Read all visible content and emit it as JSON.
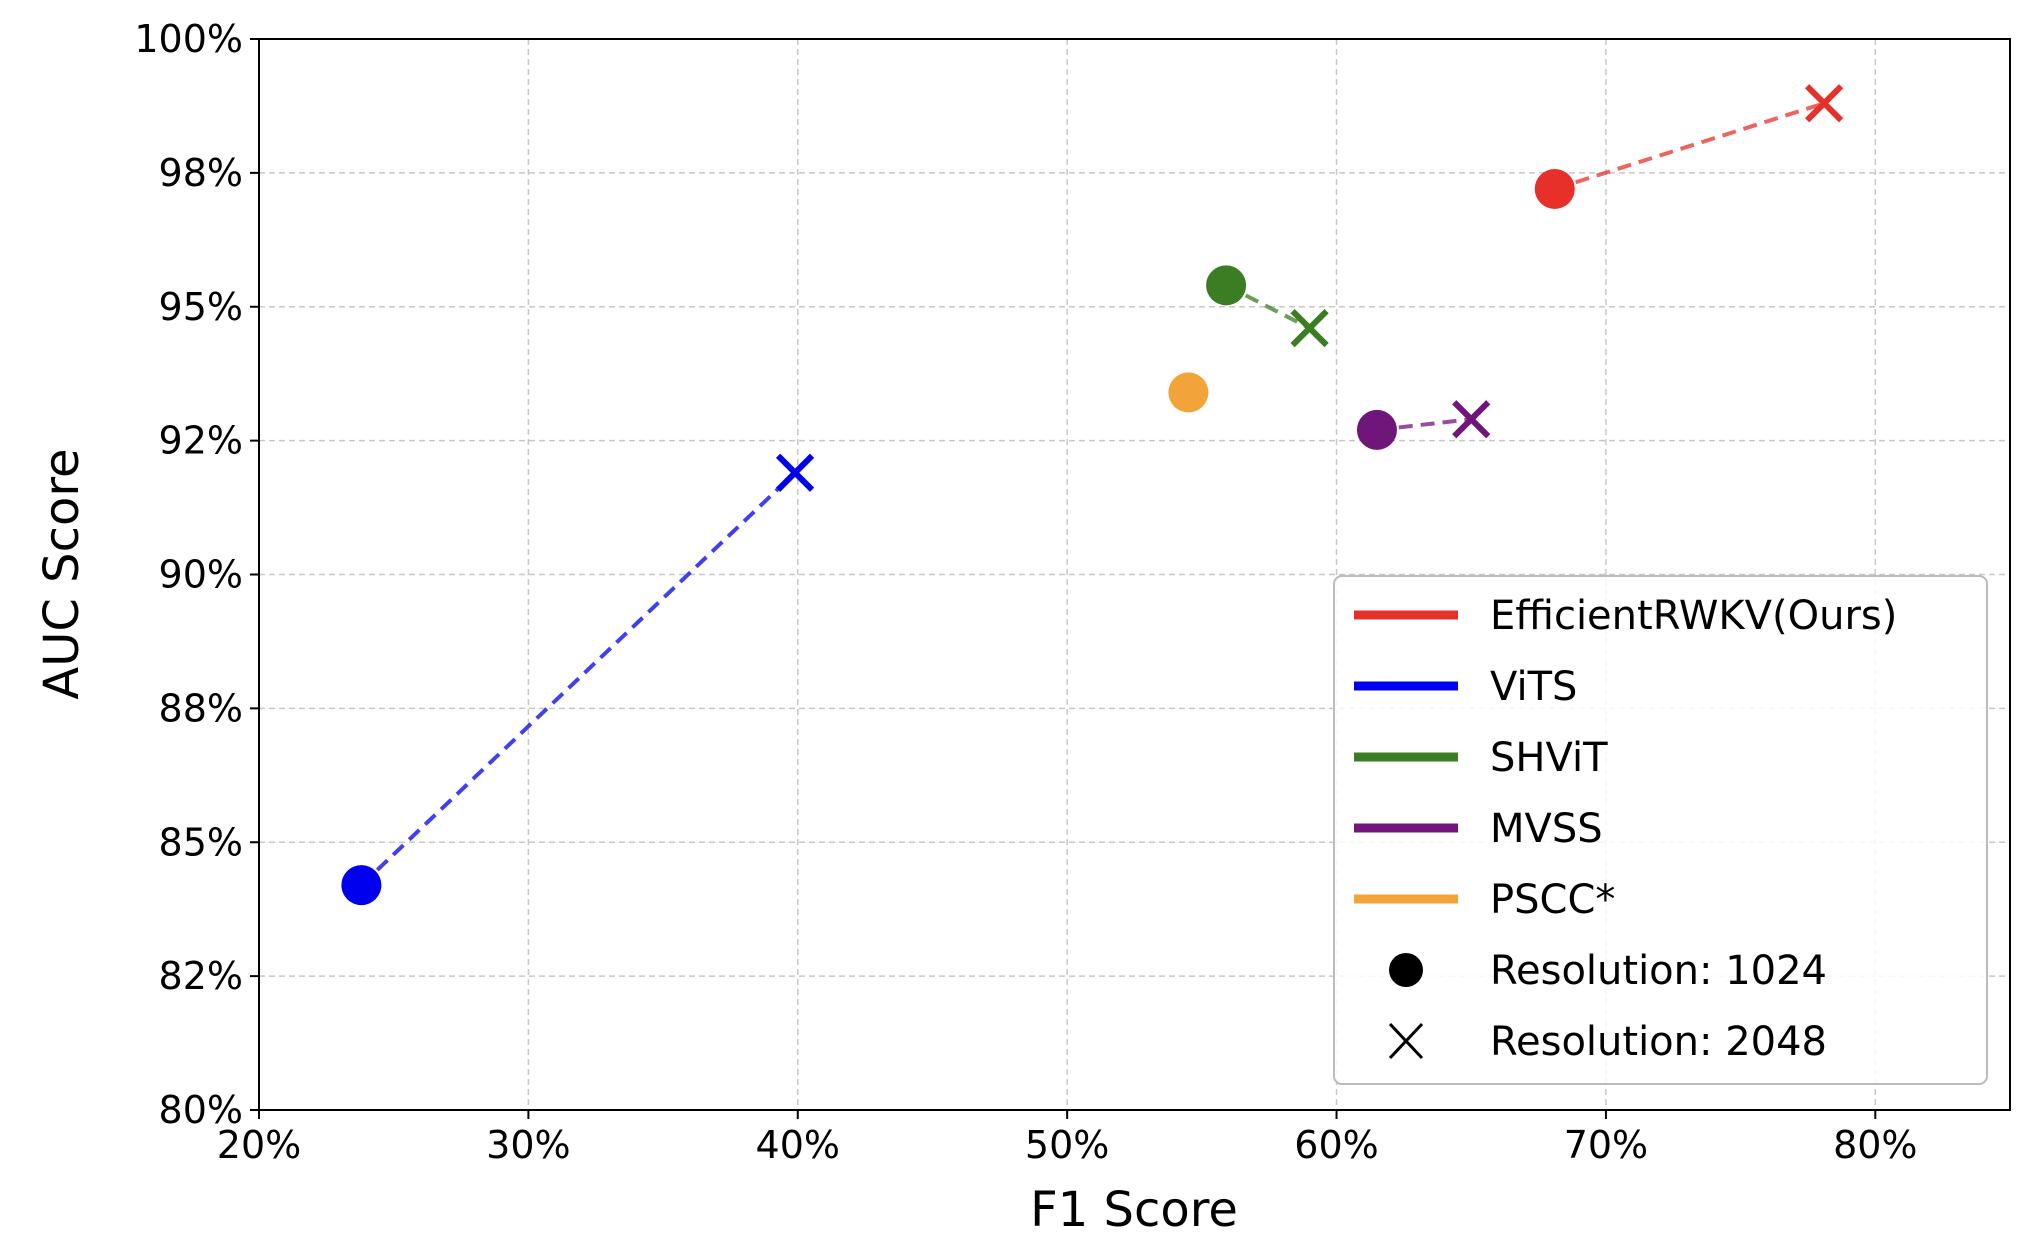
{
  "chart_data": {
    "type": "scatter",
    "xlabel": "F1 Score",
    "ylabel": "AUC Score",
    "xlim": [
      20,
      85
    ],
    "ylim": [
      80,
      100
    ],
    "x_ticks": [
      20,
      30,
      40,
      50,
      60,
      70,
      80
    ],
    "x_tick_labels": [
      "20%",
      "30%",
      "40%",
      "50%",
      "60%",
      "70%",
      "80%"
    ],
    "y_ticks": [
      80,
      82.5,
      85,
      87.5,
      90,
      92.5,
      95,
      97.5,
      100
    ],
    "y_tick_labels": [
      "80%",
      "82%",
      "85%",
      "88%",
      "90%",
      "92%",
      "95%",
      "98%",
      "100%"
    ],
    "grid": true,
    "legend_position": "bottom-right",
    "series": [
      {
        "name": "EfficientRWKV(Ours)",
        "color": "#e8302a",
        "points": [
          {
            "x": 68.1,
            "y": 97.2,
            "resolution": 1024
          },
          {
            "x": 78.1,
            "y": 98.8,
            "resolution": 2048
          }
        ]
      },
      {
        "name": "ViTS",
        "color": "#0000ee",
        "points": [
          {
            "x": 23.8,
            "y": 84.2,
            "resolution": 1024
          },
          {
            "x": 39.9,
            "y": 91.9,
            "resolution": 2048
          }
        ]
      },
      {
        "name": "SHViT",
        "color": "#3a7d22",
        "points": [
          {
            "x": 55.9,
            "y": 95.4,
            "resolution": 1024
          },
          {
            "x": 59.0,
            "y": 94.6,
            "resolution": 2048
          }
        ]
      },
      {
        "name": "MVSS",
        "color": "#701579",
        "points": [
          {
            "x": 61.5,
            "y": 92.7,
            "resolution": 1024
          },
          {
            "x": 65.0,
            "y": 92.9,
            "resolution": 2048
          }
        ]
      },
      {
        "name": "PSCC*",
        "color": "#f2a43a",
        "points": [
          {
            "x": 54.5,
            "y": 93.4,
            "resolution": 1024
          }
        ]
      }
    ],
    "marker_legend": [
      {
        "marker": "circle",
        "label": "Resolution: 1024"
      },
      {
        "marker": "x",
        "label": "Resolution: 2048"
      }
    ]
  }
}
